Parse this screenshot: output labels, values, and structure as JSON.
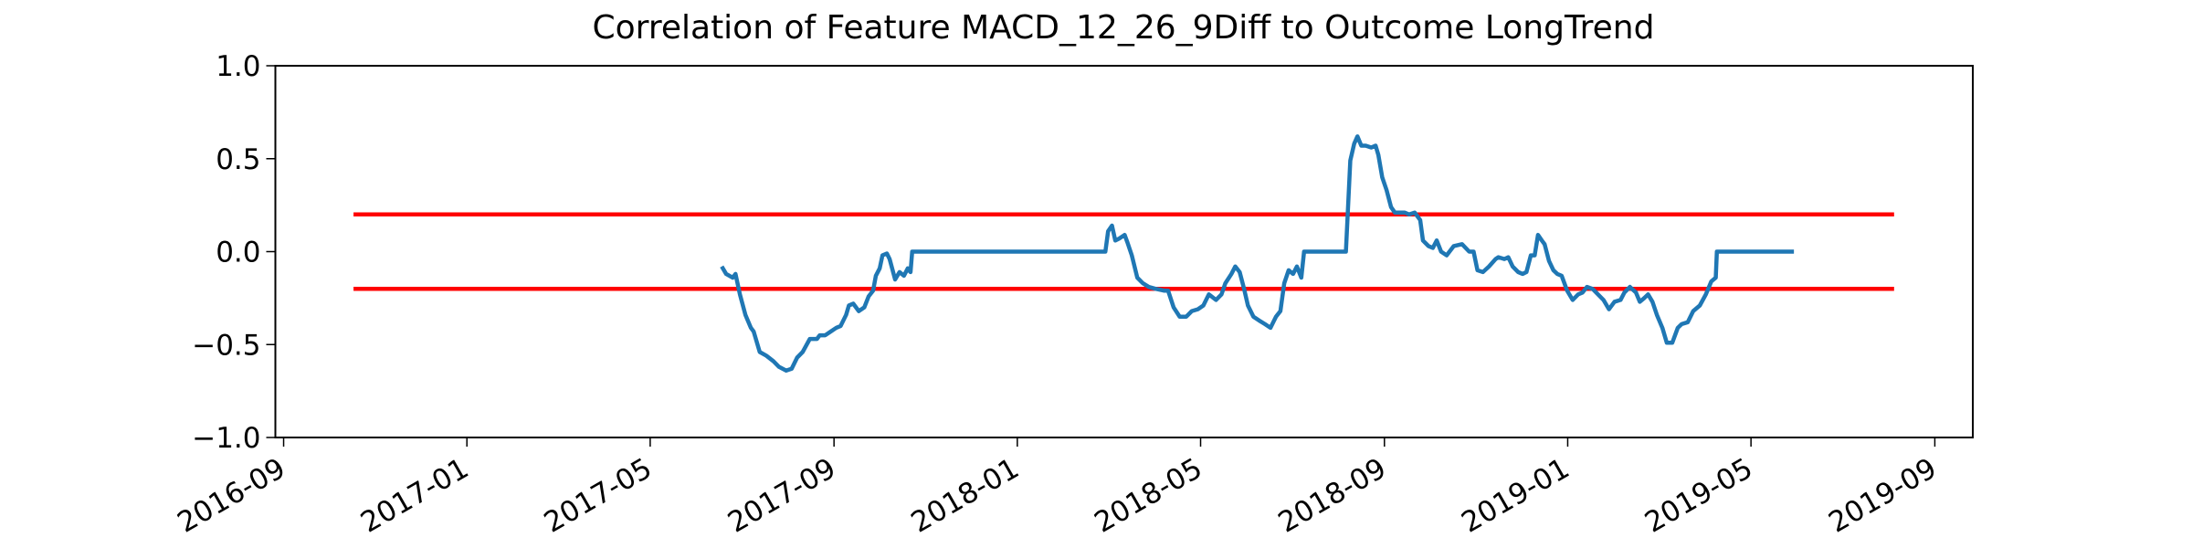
{
  "chart_data": {
    "type": "line",
    "title": "Correlation of Feature MACD_12_26_9Diff to Outcome LongTrend",
    "xlim": [
      2016.652,
      2019.736
    ],
    "xticks": [
      {
        "value": 2016.667,
        "label": "2016-09"
      },
      {
        "value": 2017,
        "label": "2017-01"
      },
      {
        "value": 2017.333,
        "label": "2017-05"
      },
      {
        "value": 2017.667,
        "label": "2017-09"
      },
      {
        "value": 2018,
        "label": "2018-01"
      },
      {
        "value": 2018.333,
        "label": "2018-05"
      },
      {
        "value": 2018.667,
        "label": "2018-09"
      },
      {
        "value": 2019,
        "label": "2019-01"
      },
      {
        "value": 2019.333,
        "label": "2019-05"
      },
      {
        "value": 2019.667,
        "label": "2019-09"
      }
    ],
    "ylim": [
      -1,
      1
    ],
    "yticks": [
      {
        "value": -1,
        "label": "−1.0"
      },
      {
        "value": -0.5,
        "label": "−0.5"
      },
      {
        "value": 0,
        "label": "0.0"
      },
      0.5,
      {
        "value": 1,
        "label": "1.0"
      }
    ],
    "grid": false,
    "series": [
      {
        "color": "#ff0000",
        "x": [
          2016.794,
          2019.593
        ],
        "values": [
          0.2,
          0.2
        ]
      },
      {
        "color": "#ff0000",
        "x": [
          2016.794,
          2019.593
        ],
        "values": [
          -0.2,
          -0.2
        ]
      },
      {
        "color": "#1f77b4",
        "x": [
          2017.463,
          2017.471,
          2017.483,
          2017.488,
          2017.496,
          2017.506,
          2017.516,
          2017.521,
          2017.532,
          2017.544,
          2017.557,
          2017.567,
          2017.58,
          2017.59,
          2017.6,
          2017.61,
          2017.623,
          2017.636,
          2017.641,
          2017.651,
          2017.661,
          2017.671,
          2017.679,
          2017.689,
          2017.694,
          2017.702,
          2017.712,
          2017.722,
          2017.73,
          2017.738,
          2017.743,
          2017.75,
          2017.755,
          2017.763,
          2017.768,
          2017.778,
          2017.786,
          2017.794,
          2017.801,
          2017.806,
          2017.809,
          2018.16,
          2018.165,
          2018.172,
          2018.178,
          2018.185,
          2018.195,
          2018.2,
          2018.208,
          2018.218,
          2018.228,
          2018.239,
          2018.251,
          2018.267,
          2018.274,
          2018.284,
          2018.295,
          2018.307,
          2018.317,
          2018.328,
          2018.338,
          2018.348,
          2018.361,
          2018.371,
          2018.378,
          2018.389,
          2018.396,
          2018.404,
          2018.412,
          2018.419,
          2018.429,
          2018.439,
          2018.45,
          2018.46,
          2018.47,
          2018.478,
          2018.485,
          2018.493,
          2018.501,
          2018.508,
          2018.516,
          2018.521,
          2018.597,
          2018.605,
          2018.612,
          2018.618,
          2018.625,
          2018.633,
          2018.643,
          2018.651,
          2018.656,
          2018.663,
          2018.671,
          2018.679,
          2018.686,
          2018.694,
          2018.704,
          2018.712,
          2018.722,
          2018.732,
          2018.737,
          2018.747,
          2018.755,
          2018.762,
          2018.77,
          2018.78,
          2018.793,
          2018.808,
          2018.821,
          2018.829,
          2018.836,
          2018.846,
          2018.857,
          2018.869,
          2018.874,
          2018.885,
          2018.892,
          2018.9,
          2018.91,
          2018.918,
          2018.925,
          2018.933,
          2018.94,
          2018.946,
          2018.953,
          2018.958,
          2018.966,
          2018.974,
          2018.981,
          2018.989,
          2018.999,
          2019.009,
          2019.019,
          2019.027,
          2019.035,
          2019.045,
          2019.055,
          2019.065,
          2019.075,
          2019.085,
          2019.096,
          2019.103,
          2019.113,
          2019.124,
          2019.131,
          2019.139,
          2019.146,
          2019.154,
          2019.162,
          2019.172,
          2019.18,
          2019.19,
          2019.2,
          2019.207,
          2019.218,
          2019.228,
          2019.24,
          2019.251,
          2019.261,
          2019.269,
          2019.271,
          2019.411
        ],
        "values": [
          -0.08,
          -0.12,
          -0.14,
          -0.12,
          -0.23,
          -0.34,
          -0.41,
          -0.43,
          -0.54,
          -0.56,
          -0.59,
          -0.62,
          -0.64,
          -0.63,
          -0.57,
          -0.54,
          -0.47,
          -0.47,
          -0.45,
          -0.45,
          -0.43,
          -0.41,
          -0.4,
          -0.34,
          -0.29,
          -0.28,
          -0.32,
          -0.3,
          -0.24,
          -0.21,
          -0.13,
          -0.09,
          -0.02,
          -0.01,
          -0.04,
          -0.15,
          -0.11,
          -0.13,
          -0.09,
          -0.11,
          0,
          0,
          0.11,
          0.14,
          0.06,
          0.07,
          0.09,
          0.05,
          -0.02,
          -0.14,
          -0.17,
          -0.19,
          -0.2,
          -0.21,
          -0.21,
          -0.3,
          -0.35,
          -0.35,
          -0.32,
          -0.31,
          -0.29,
          -0.23,
          -0.26,
          -0.23,
          -0.17,
          -0.12,
          -0.08,
          -0.11,
          -0.2,
          -0.29,
          -0.35,
          -0.37,
          -0.39,
          -0.41,
          -0.35,
          -0.32,
          -0.17,
          -0.1,
          -0.12,
          -0.08,
          -0.14,
          0,
          0,
          0.49,
          0.58,
          0.62,
          0.57,
          0.57,
          0.56,
          0.57,
          0.52,
          0.4,
          0.33,
          0.24,
          0.21,
          0.21,
          0.21,
          0.2,
          0.21,
          0.17,
          0.06,
          0.03,
          0.02,
          0.06,
          0,
          -0.02,
          0.03,
          0.04,
          0,
          0,
          -0.1,
          -0.11,
          -0.08,
          -0.04,
          -0.03,
          -0.04,
          -0.03,
          -0.08,
          -0.11,
          -0.12,
          -0.11,
          -0.02,
          -0.02,
          0.09,
          0.06,
          0.04,
          -0.05,
          -0.1,
          -0.12,
          -0.13,
          -0.21,
          -0.26,
          -0.23,
          -0.22,
          -0.19,
          -0.2,
          -0.23,
          -0.26,
          -0.31,
          -0.27,
          -0.26,
          -0.22,
          -0.19,
          -0.22,
          -0.27,
          -0.25,
          -0.23,
          -0.27,
          -0.34,
          -0.41,
          -0.49,
          -0.49,
          -0.41,
          -0.39,
          -0.38,
          -0.32,
          -0.29,
          -0.23,
          -0.16,
          -0.14,
          0,
          0
        ]
      }
    ]
  }
}
